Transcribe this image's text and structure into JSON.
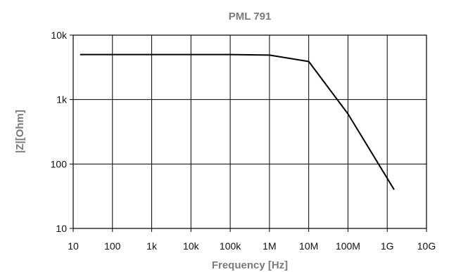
{
  "chart_data": {
    "type": "line",
    "title": "PML 791",
    "xlabel": "Frequency [Hz]",
    "ylabel": "|Z|[Ohm]",
    "x_scale": "log",
    "y_scale": "log",
    "xlim": [
      10,
      10000000000
    ],
    "ylim": [
      10,
      10000
    ],
    "x_ticks": [
      {
        "value": 10,
        "label": "10"
      },
      {
        "value": 100,
        "label": "100"
      },
      {
        "value": 1000,
        "label": "1k"
      },
      {
        "value": 10000,
        "label": "10k"
      },
      {
        "value": 100000,
        "label": "100k"
      },
      {
        "value": 1000000,
        "label": "1M"
      },
      {
        "value": 10000000,
        "label": "10M"
      },
      {
        "value": 100000000,
        "label": "100M"
      },
      {
        "value": 1000000000,
        "label": "1G"
      },
      {
        "value": 10000000000,
        "label": "10G"
      }
    ],
    "y_ticks": [
      {
        "value": 10,
        "label": "10"
      },
      {
        "value": 100,
        "label": "100"
      },
      {
        "value": 1000,
        "label": "1k"
      },
      {
        "value": 10000,
        "label": "10k"
      }
    ],
    "grid": true,
    "legend": "none",
    "series": [
      {
        "color": "#000000",
        "points": [
          {
            "x": 15,
            "y": 5000
          },
          {
            "x": 100000,
            "y": 5000
          },
          {
            "x": 1000000,
            "y": 4900
          },
          {
            "x": 10000000,
            "y": 3900
          },
          {
            "x": 100000000,
            "y": 600
          },
          {
            "x": 1500000000,
            "y": 40
          }
        ]
      }
    ]
  }
}
